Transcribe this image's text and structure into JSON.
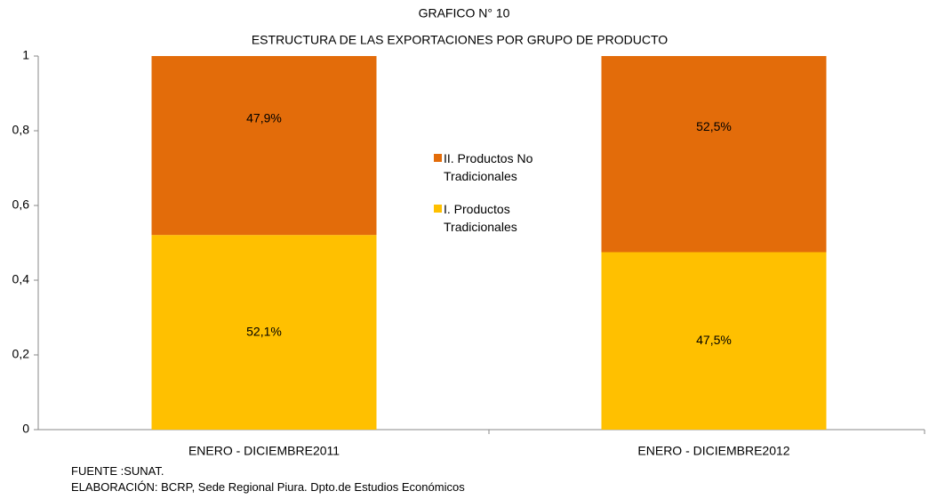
{
  "chart_data": {
    "type": "stacked_bar",
    "title": "GRAFICO N° 10",
    "subtitle": "ESTRUCTURA DE LAS EXPORTACIONES POR GRUPO DE PRODUCTO",
    "categories": [
      "ENERO - DICIEMBRE2011",
      "ENERO - DICIEMBRE2012"
    ],
    "series": [
      {
        "name": "I. Productos Tradicionales",
        "color": "#FFC000",
        "values": [
          0.521,
          0.475
        ],
        "value_labels": [
          "52,1%",
          "47,5%"
        ]
      },
      {
        "name": "II. Productos No Tradicionales",
        "color": "#E36C0A",
        "values": [
          0.479,
          0.525
        ],
        "value_labels": [
          "47,9%",
          "52,5%"
        ]
      }
    ],
    "ylim": [
      0,
      1
    ],
    "yticks": [
      0,
      {
        "value": 0.2,
        "label": "0,2"
      },
      {
        "value": 0.4,
        "label": "0,4"
      },
      {
        "value": 0.6,
        "label": "0,6"
      },
      {
        "value": 0.8,
        "label": "0,8"
      },
      1
    ],
    "legend": "center",
    "source": "FUENTE :SUNAT.",
    "credit": "ELABORACIÓN: BCRP, Sede Regional Piura. Dpto.de Estudios Económicos"
  }
}
